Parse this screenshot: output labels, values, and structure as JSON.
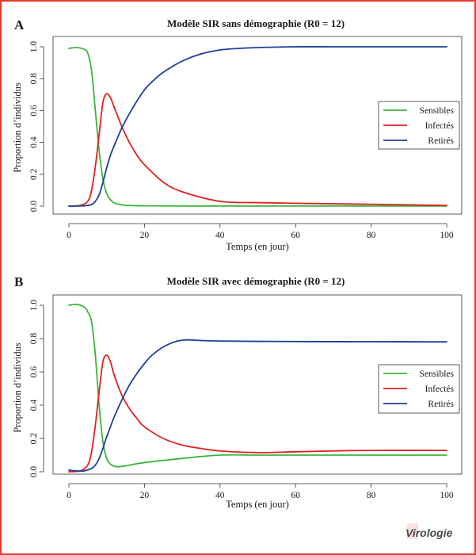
{
  "colors": {
    "frame": "#e53a2f",
    "sensibles": "#3cb43c",
    "infectes": "#e02020",
    "retires": "#1f3e98"
  },
  "logo": {
    "text": "Virologie"
  },
  "chart_data": [
    {
      "panel": "A",
      "type": "line",
      "title": "Modèle SIR sans démographie (R0 = 12)",
      "xlabel": "Temps (en jour)",
      "ylabel": "Proportion d’individus",
      "xlim": [
        0,
        100
      ],
      "ylim": [
        0,
        1
      ],
      "xticks": [
        "0",
        "20",
        "40",
        "60",
        "80",
        "100"
      ],
      "yticks": [
        "0.0",
        "0.2",
        "0.4",
        "0.6",
        "0.8",
        "1.0"
      ],
      "grid": false,
      "legend_position": "right",
      "series": [
        {
          "name": "Sensibles",
          "color_key": "sensibles",
          "x": [
            0,
            2,
            4,
            5,
            6,
            7,
            8,
            9,
            10,
            11,
            12,
            14,
            16,
            20,
            30,
            50,
            100
          ],
          "y": [
            0.99,
            0.995,
            0.985,
            0.96,
            0.85,
            0.6,
            0.35,
            0.17,
            0.08,
            0.04,
            0.02,
            0.008,
            0.004,
            0.002,
            0.001,
            0.001,
            0.001
          ]
        },
        {
          "name": "Infectés",
          "color_key": "infectes",
          "x": [
            0,
            3,
            5,
            6,
            7,
            8,
            9,
            10,
            11,
            12,
            14,
            16,
            18,
            20,
            25,
            30,
            40,
            50,
            60,
            70,
            80,
            90,
            100
          ],
          "y": [
            0.0,
            0.005,
            0.03,
            0.1,
            0.25,
            0.45,
            0.65,
            0.705,
            0.68,
            0.62,
            0.5,
            0.4,
            0.32,
            0.26,
            0.15,
            0.09,
            0.03,
            0.022,
            0.018,
            0.015,
            0.012,
            0.008,
            0.004
          ]
        },
        {
          "name": "Retirés",
          "color_key": "retires",
          "x": [
            0,
            4,
            6,
            7,
            8,
            9,
            10,
            11,
            12,
            14,
            16,
            18,
            20,
            22,
            25,
            30,
            35,
            40,
            45,
            50,
            60,
            70,
            80,
            100
          ],
          "y": [
            0.0,
            0.002,
            0.01,
            0.03,
            0.07,
            0.15,
            0.24,
            0.32,
            0.38,
            0.49,
            0.58,
            0.66,
            0.73,
            0.78,
            0.84,
            0.91,
            0.955,
            0.98,
            0.99,
            0.995,
            1.0,
            1.0,
            1.0,
            1.0
          ]
        }
      ]
    },
    {
      "panel": "B",
      "type": "line",
      "title": "Modèle SIR avec démographie (R0 = 12)",
      "xlabel": "Temps (en jour)",
      "ylabel": "Proportion d’individus",
      "xlim": [
        0,
        100
      ],
      "ylim": [
        0,
        1
      ],
      "xticks": [
        "0",
        "20",
        "40",
        "60",
        "80",
        "100"
      ],
      "yticks": [
        "0.0",
        "0.2",
        "0.4",
        "0.6",
        "0.8",
        "1.0"
      ],
      "grid": false,
      "legend_position": "right",
      "series": [
        {
          "name": "Sensibles",
          "color_key": "sensibles",
          "x": [
            0,
            2,
            4,
            5,
            6,
            7,
            8,
            9,
            10,
            11,
            12,
            13,
            14,
            16,
            20,
            30,
            40,
            50,
            60,
            80,
            100
          ],
          "y": [
            1.0,
            1.005,
            0.99,
            0.96,
            0.9,
            0.7,
            0.4,
            0.18,
            0.08,
            0.045,
            0.033,
            0.03,
            0.032,
            0.04,
            0.055,
            0.08,
            0.1,
            0.1,
            0.1,
            0.1,
            0.1
          ]
        },
        {
          "name": "Infectés",
          "color_key": "infectes",
          "x": [
            0,
            3,
            5,
            6,
            7,
            8,
            9,
            10,
            11,
            12,
            14,
            16,
            18,
            20,
            25,
            30,
            35,
            40,
            50,
            60,
            70,
            80,
            100
          ],
          "y": [
            0.0,
            0.005,
            0.04,
            0.12,
            0.28,
            0.48,
            0.66,
            0.7,
            0.66,
            0.58,
            0.46,
            0.38,
            0.32,
            0.27,
            0.2,
            0.16,
            0.14,
            0.125,
            0.115,
            0.12,
            0.125,
            0.128,
            0.128
          ]
        },
        {
          "name": "Retirés",
          "color_key": "retires",
          "x": [
            0,
            2,
            4,
            6,
            7,
            8,
            9,
            10,
            11,
            12,
            14,
            16,
            18,
            20,
            22,
            25,
            28,
            30,
            32,
            35,
            40,
            50,
            60,
            80,
            100
          ],
          "y": [
            0.01,
            0.005,
            0.005,
            0.02,
            0.04,
            0.08,
            0.14,
            0.21,
            0.27,
            0.33,
            0.43,
            0.52,
            0.59,
            0.65,
            0.7,
            0.75,
            0.78,
            0.79,
            0.792,
            0.788,
            0.785,
            0.783,
            0.782,
            0.781,
            0.78
          ]
        }
      ]
    }
  ]
}
